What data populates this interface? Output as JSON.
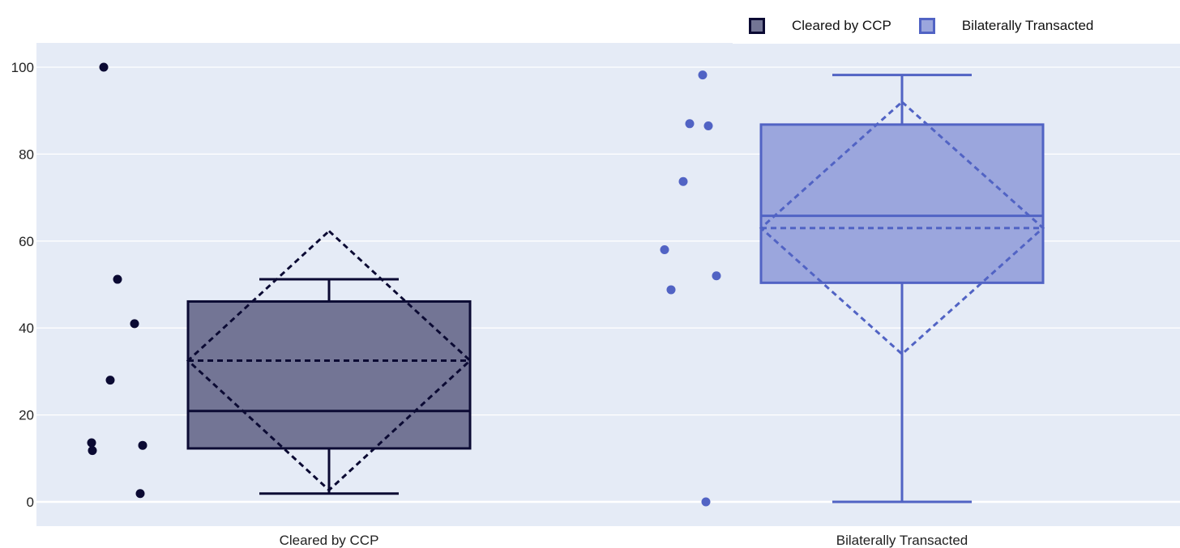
{
  "chart_data": {
    "type": "box",
    "title": "",
    "xlabel": "",
    "ylabel": "",
    "ylim": [
      -5,
      106
    ],
    "yticks": [
      0,
      20,
      40,
      60,
      80,
      100
    ],
    "grid": true,
    "legend_position": "top-right",
    "categories": [
      "Cleared by CCP",
      "Bilaterally Transacted"
    ],
    "series": [
      {
        "name": "Cleared by CCP",
        "color": "#0b0a33",
        "fill": "#737595",
        "points": [
          100,
          51.2,
          41,
          28,
          13.6,
          11.8,
          13,
          1.9
        ],
        "min": 1.9,
        "q1": 12.3,
        "median": 20.9,
        "q3": 46.1,
        "max": 51.2,
        "mean": 32.5,
        "sd": 29.8
      },
      {
        "name": "Bilaterally Transacted",
        "color": "#5163c4",
        "fill": "#9ba6dd",
        "points": [
          98.2,
          87,
          86.5,
          73.7,
          58,
          48.8,
          52,
          0
        ],
        "min": 0,
        "q1": 50.4,
        "median": 65.8,
        "q3": 86.8,
        "max": 98.2,
        "mean": 63.0,
        "sd": 29.0
      }
    ]
  }
}
